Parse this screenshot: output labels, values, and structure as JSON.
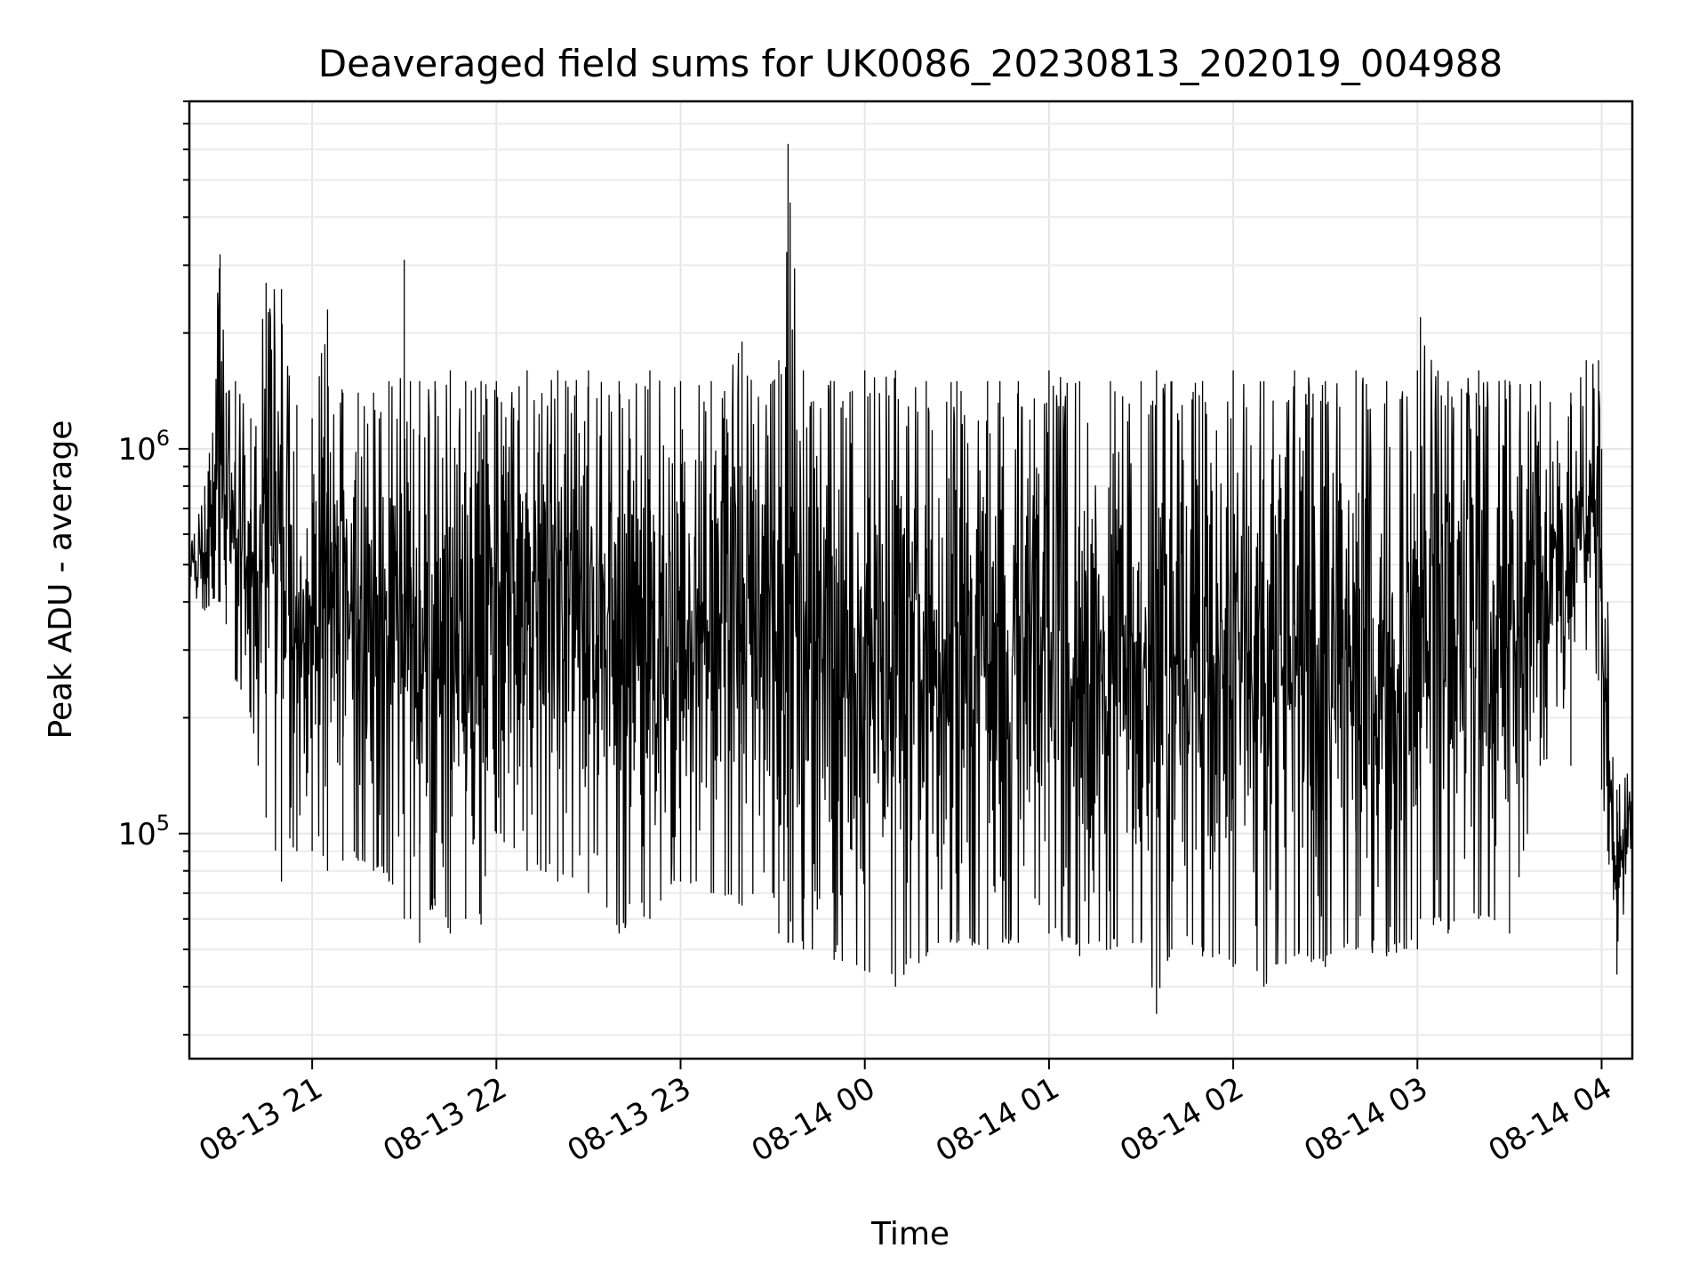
{
  "chart_data": {
    "type": "line",
    "title": "Deaveraged field sums for UK0086_20230813_202019_004988",
    "xlabel": "Time",
    "ylabel": "Peak ADU - average",
    "yscale": "log",
    "grid": true,
    "legend": "none",
    "line_color": "#000000",
    "xlim": [
      "2023-08-13 20:20",
      "2023-08-14 04:10"
    ],
    "ylim": [
      26000,
      8000000
    ],
    "x_ticks": [
      {
        "value": "2023-08-13 21:00",
        "label": "08-13 21"
      },
      {
        "value": "2023-08-13 22:00",
        "label": "08-13 22"
      },
      {
        "value": "2023-08-13 23:00",
        "label": "08-13 23"
      },
      {
        "value": "2023-08-14 00:00",
        "label": "08-14 00"
      },
      {
        "value": "2023-08-14 01:00",
        "label": "08-14 01"
      },
      {
        "value": "2023-08-14 02:00",
        "label": "08-14 02"
      },
      {
        "value": "2023-08-14 03:00",
        "label": "08-14 03"
      },
      {
        "value": "2023-08-14 04:00",
        "label": "08-14 04"
      }
    ],
    "y_ticks": [
      {
        "value": 100000,
        "base": "10",
        "exp": "5"
      },
      {
        "value": 1000000,
        "base": "10",
        "exp": "6"
      }
    ],
    "series": [
      {
        "x": [
          "2023-08-13 20:20",
          "2023-08-13 20:25",
          "2023-08-13 20:30",
          "2023-08-13 20:32",
          "2023-08-13 20:35",
          "2023-08-13 20:40",
          "2023-08-13 20:45",
          "2023-08-13 20:50",
          "2023-08-13 20:55",
          "2023-08-13 21:00",
          "2023-08-13 21:05",
          "2023-08-13 21:10",
          "2023-08-13 21:15",
          "2023-08-13 21:20",
          "2023-08-13 21:25",
          "2023-08-13 21:30",
          "2023-08-13 21:32",
          "2023-08-13 21:35",
          "2023-08-13 21:40",
          "2023-08-13 21:45",
          "2023-08-13 21:50",
          "2023-08-13 21:55",
          "2023-08-13 22:00",
          "2023-08-13 22:10",
          "2023-08-13 22:20",
          "2023-08-13 22:30",
          "2023-08-13 22:40",
          "2023-08-13 22:50",
          "2023-08-13 23:00",
          "2023-08-13 23:10",
          "2023-08-13 23:20",
          "2023-08-13 23:30",
          "2023-08-13 23:32",
          "2023-08-13 23:35",
          "2023-08-13 23:40",
          "2023-08-13 23:50",
          "2023-08-14 00:00",
          "2023-08-14 00:10",
          "2023-08-14 00:20",
          "2023-08-14 00:30",
          "2023-08-14 00:40",
          "2023-08-14 00:50",
          "2023-08-14 01:00",
          "2023-08-14 01:10",
          "2023-08-14 01:20",
          "2023-08-14 01:30",
          "2023-08-14 01:35",
          "2023-08-14 01:40",
          "2023-08-14 01:50",
          "2023-08-14 02:00",
          "2023-08-14 02:10",
          "2023-08-14 02:20",
          "2023-08-14 02:30",
          "2023-08-14 02:40",
          "2023-08-14 02:50",
          "2023-08-14 03:00",
          "2023-08-14 03:01",
          "2023-08-14 03:10",
          "2023-08-14 03:20",
          "2023-08-14 03:30",
          "2023-08-14 03:40",
          "2023-08-14 03:50",
          "2023-08-14 03:55",
          "2023-08-14 03:59",
          "2023-08-14 04:00",
          "2023-08-14 04:02",
          "2023-08-14 04:05",
          "2023-08-14 04:10"
        ],
        "upper": [
          550000,
          800000,
          3200000,
          1400000,
          1500000,
          1200000,
          2700000,
          2600000,
          1300000,
          1200000,
          2300000,
          1400000,
          1400000,
          1400000,
          1500000,
          3100000,
          1500000,
          1500000,
          1500000,
          1600000,
          1500000,
          1500000,
          1500000,
          1600000,
          1600000,
          1600000,
          1500000,
          1600000,
          1500000,
          1500000,
          1900000,
          1500000,
          1700000,
          6200000,
          1600000,
          1500000,
          1600000,
          1600000,
          1500000,
          1500000,
          1500000,
          1500000,
          1600000,
          1500000,
          1500000,
          1500000,
          1600000,
          1500000,
          1500000,
          1600000,
          1500000,
          1600000,
          1500000,
          1600000,
          1500000,
          1600000,
          2200000,
          1500000,
          1600000,
          1500000,
          1500000,
          1400000,
          1700000,
          1700000,
          1000000,
          400000,
          130000,
          160000
        ],
        "lower": [
          380000,
          380000,
          400000,
          350000,
          250000,
          200000,
          110000,
          75000,
          90000,
          90000,
          80000,
          85000,
          85000,
          80000,
          75000,
          60000,
          60000,
          52000,
          65000,
          55000,
          60000,
          58000,
          100000,
          80000,
          75000,
          70000,
          55000,
          60000,
          75000,
          70000,
          65000,
          70000,
          55000,
          52000,
          50000,
          47000,
          44000,
          40000,
          48000,
          52000,
          50000,
          52000,
          55000,
          48000,
          50000,
          52000,
          34000,
          50000,
          48000,
          45000,
          40000,
          48000,
          45000,
          50000,
          48000,
          50000,
          60000,
          55000,
          60000,
          55000,
          150000,
          150000,
          300000,
          250000,
          130000,
          90000,
          43000,
          100000
        ]
      }
    ]
  }
}
